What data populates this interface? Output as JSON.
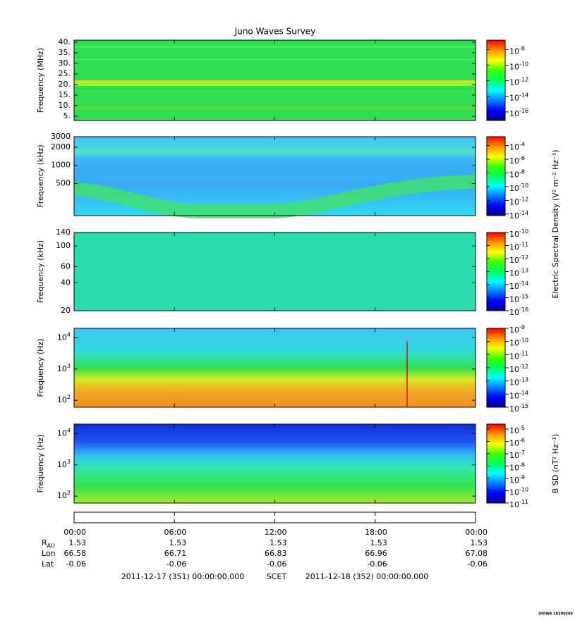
{
  "colormap": [
    "#00008c",
    "#0000ff",
    "#0080ff",
    "#00ffff",
    "#00ff60",
    "#40ff00",
    "#ffff00",
    "#ff9000",
    "#ff0000"
  ],
  "chart_data": [
    {
      "type": "spectrogram",
      "title": "Juno Waves Survey",
      "ylabel": "Frequency (MHz)",
      "ylog": false,
      "ylim": [
        3,
        41
      ],
      "yticks": [
        {
          "value": 5,
          "label": "5."
        },
        {
          "value": 10,
          "label": "10."
        },
        {
          "value": 15,
          "label": "15."
        },
        {
          "value": 20,
          "label": "20."
        },
        {
          "value": 25,
          "label": "25."
        },
        {
          "value": 30,
          "label": "30."
        },
        {
          "value": 35,
          "label": "35."
        },
        {
          "value": 40,
          "label": "40."
        }
      ],
      "clog": true,
      "clim": [
        8e-18,
        1.6e-07
      ],
      "cticks": [
        {
          "value": 1e-08,
          "label": "10",
          "exponent": "-8"
        },
        {
          "value": 1e-10,
          "label": "10",
          "exponent": "-10"
        },
        {
          "value": 1e-12,
          "label": "10",
          "exponent": "-12"
        },
        {
          "value": 1e-14,
          "label": "10",
          "exponent": "-14"
        },
        {
          "value": 1e-16,
          "label": "10",
          "exponent": "-16"
        }
      ]
    },
    {
      "type": "spectrogram",
      "ylabel": "Frequency (kHz)",
      "ylog": true,
      "ylim": [
        146,
        3000
      ],
      "yticks": [
        500,
        1000,
        2000,
        3000
      ],
      "clog": true,
      "clim": [
        6e-15,
        0.002
      ],
      "cticks": [
        {
          "value": 0.0001,
          "label": "10",
          "exponent": "-4"
        },
        {
          "value": 1e-06,
          "label": "10",
          "exponent": "-6"
        },
        {
          "value": 1e-08,
          "label": "10",
          "exponent": "-8"
        },
        {
          "value": 1e-10,
          "label": "10",
          "exponent": "-10"
        },
        {
          "value": 1e-12,
          "label": "10",
          "exponent": "-12"
        },
        {
          "value": 1e-14,
          "label": "10",
          "exponent": "-14"
        }
      ],
      "colorbar_label": "Electric Spectral Density (V² m⁻² Hz⁻¹)"
    },
    {
      "type": "spectrogram",
      "ylabel": "Frequency (kHz)",
      "ylog": true,
      "ylim": [
        20,
        140
      ],
      "yticks": [
        20,
        40,
        60,
        100,
        140
      ],
      "clog": true,
      "clim": [
        1e-16,
        1e-10
      ],
      "cticks": [
        {
          "value": 1e-10,
          "label": "10",
          "exponent": "-10"
        },
        {
          "value": 1e-11,
          "label": "10",
          "exponent": "-11"
        },
        {
          "value": 1e-12,
          "label": "10",
          "exponent": "-12"
        },
        {
          "value": 1e-13,
          "label": "10",
          "exponent": "-13"
        },
        {
          "value": 1e-14,
          "label": "10",
          "exponent": "-14"
        },
        {
          "value": 1e-15,
          "label": "10",
          "exponent": "-15"
        },
        {
          "value": 1e-16,
          "label": "10",
          "exponent": "-16"
        }
      ]
    },
    {
      "type": "spectrogram",
      "ylabel": "Frequency (Hz)",
      "ylog": true,
      "ylim": [
        60,
        20000
      ],
      "yticks": [
        {
          "value": 100,
          "label": "10",
          "exponent": "2"
        },
        {
          "value": 1000,
          "label": "10",
          "exponent": "3"
        },
        {
          "value": 10000,
          "label": "10",
          "exponent": "4"
        }
      ],
      "clog": true,
      "clim": [
        1e-15,
        1e-09
      ],
      "cticks": [
        {
          "value": 1e-09,
          "label": "10",
          "exponent": "-9"
        },
        {
          "value": 1e-10,
          "label": "10",
          "exponent": "-10"
        },
        {
          "value": 1e-11,
          "label": "10",
          "exponent": "-11"
        },
        {
          "value": 1e-12,
          "label": "10",
          "exponent": "-12"
        },
        {
          "value": 1e-13,
          "label": "10",
          "exponent": "-13"
        },
        {
          "value": 1e-14,
          "label": "10",
          "exponent": "-14"
        },
        {
          "value": 1e-15,
          "label": "10",
          "exponent": "-15"
        }
      ]
    },
    {
      "type": "spectrogram",
      "ylabel": "Frequency (Hz)",
      "ylog": true,
      "ylim": [
        60,
        20000
      ],
      "yticks": [
        {
          "value": 100,
          "label": "10",
          "exponent": "2"
        },
        {
          "value": 1000,
          "label": "10",
          "exponent": "3"
        },
        {
          "value": 10000,
          "label": "10",
          "exponent": "4"
        }
      ],
      "clog": true,
      "clim": [
        1e-11,
        2.5e-05
      ],
      "cticks": [
        {
          "value": 1e-05,
          "label": "10",
          "exponent": "-5"
        },
        {
          "value": 1e-06,
          "label": "10",
          "exponent": "-6"
        },
        {
          "value": 1e-07,
          "label": "10",
          "exponent": "-7"
        },
        {
          "value": 1e-08,
          "label": "10",
          "exponent": "-8"
        },
        {
          "value": 1e-09,
          "label": "10",
          "exponent": "-9"
        },
        {
          "value": 1e-10,
          "label": "10",
          "exponent": "-10"
        },
        {
          "value": 1e-11,
          "label": "10",
          "exponent": "-11"
        }
      ],
      "colorbar_label": "B SD (nT² Hz⁻¹)"
    }
  ],
  "time_axis": {
    "xlim": [
      0,
      24
    ],
    "xticks": [
      {
        "value": 0,
        "label": "00:00"
      },
      {
        "value": 6,
        "label": "06:00"
      },
      {
        "value": 12,
        "label": "12:00"
      },
      {
        "value": 18,
        "label": "18:00"
      },
      {
        "value": 24,
        "label": "00:00"
      }
    ],
    "rows": [
      {
        "label": "R",
        "subscript": "AU",
        "values": [
          1.53,
          1.53,
          1.53,
          1.53,
          1.53
        ]
      },
      {
        "label": "Lon",
        "values": [
          66.58,
          66.71,
          66.83,
          66.96,
          67.08
        ]
      },
      {
        "label": "Lat",
        "values": [
          -0.06,
          -0.06,
          -0.06,
          -0.06,
          -0.06
        ]
      }
    ],
    "start": "2011-12-17 (351) 00:00:00.000",
    "frame": "SCET",
    "end": "2011-12-18 (352) 00:00:00.000"
  },
  "credit": "UIOWA 20200306"
}
